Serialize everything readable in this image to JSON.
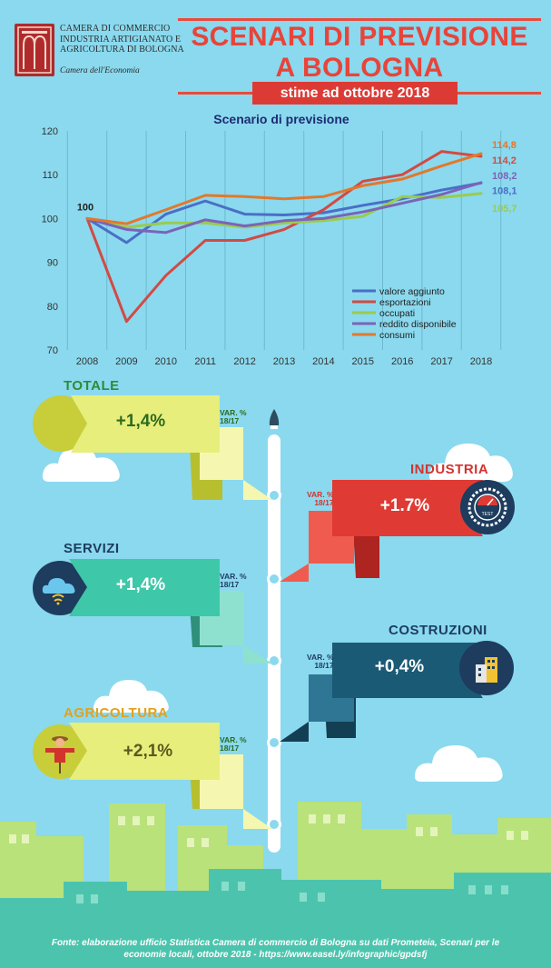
{
  "header": {
    "org_lines": [
      "CAMERA DI COMMERCIO",
      "INDUSTRIA ARTIGIANATO E",
      "AGRICOLTURA DI BOLOGNA"
    ],
    "org_sub": "Camera dell'Economia",
    "title_line1": "SCENARI DI PREVISIONE",
    "title_line2": "A BOLOGNA",
    "subtitle": "stime ad ottobre 2018"
  },
  "chart_data": {
    "type": "line",
    "title": "Scenario di previsione",
    "x": [
      2008,
      2009,
      2010,
      2011,
      2012,
      2013,
      2014,
      2015,
      2016,
      2017,
      2018
    ],
    "ylim": [
      70,
      120
    ],
    "yticks": [
      70,
      80,
      90,
      100,
      110,
      120
    ],
    "grid": "vertical",
    "legend_position": "bottom-right",
    "start_label": "100",
    "series": [
      {
        "name": "valore aggiunto",
        "color": "#4a6fc6",
        "values": [
          100,
          94.5,
          101,
          104,
          101,
          100.8,
          101.3,
          103,
          104.5,
          106.5,
          108.1
        ],
        "end_label": "108,1"
      },
      {
        "name": "esportazioni",
        "color": "#d24a43",
        "values": [
          100,
          76.5,
          87,
          95,
          95,
          97.5,
          102,
          108.5,
          110,
          115.3,
          114.2
        ],
        "end_label": "114,2"
      },
      {
        "name": "occupati",
        "color": "#9acb4e",
        "values": [
          100,
          98,
          99,
          99,
          98,
          99,
          99.5,
          100.5,
          105,
          104.8,
          105.7
        ],
        "end_label": "105,7"
      },
      {
        "name": "reddito disponibile",
        "color": "#7c63b8",
        "values": [
          100,
          97.5,
          96.8,
          99.7,
          98.3,
          99.5,
          100,
          101.5,
          103.5,
          105.5,
          108.2
        ],
        "end_label": "108,2"
      },
      {
        "name": "consumi",
        "color": "#e2782c",
        "values": [
          100,
          98.8,
          102,
          105.3,
          105,
          104.5,
          105,
          107.5,
          109,
          112,
          114.8
        ],
        "end_label": "114,8"
      }
    ]
  },
  "timeline": {
    "var_label_line1": "VAR. %",
    "var_label_line2": "18/17",
    "totale": {
      "title": "TOTALE",
      "value": "+1,4%"
    },
    "industria": {
      "title": "INDUSTRIA",
      "value": "+1.7%",
      "icon_text": "TEST"
    },
    "servizi": {
      "title": "SERVIZI",
      "value": "+1,4%"
    },
    "costruzioni": {
      "title": "COSTRUZIONI",
      "value": "+0,4%"
    },
    "agricoltura": {
      "title": "AGRICOLTURA",
      "value": "+2,1%"
    }
  },
  "colors": {
    "background": "#8ad9ee",
    "accent_red": "#e8443a",
    "totale": "#e7ee7b",
    "industria": "#e03a34",
    "servizi": "#3fc7a9",
    "costruzioni": "#1b5a75",
    "agricoltura": "#e7ee7b",
    "green_title": "#2e8b3a",
    "navy_title": "#1d3c5e"
  },
  "footer": {
    "line1": "Fonte: elaborazione ufficio Statistica Camera di commercio di Bologna su dati Prometeia, Scenari per le",
    "line2": "economie locali, ottobre 2018 - https://www.easel.ly/infographic/gpdsfj"
  }
}
